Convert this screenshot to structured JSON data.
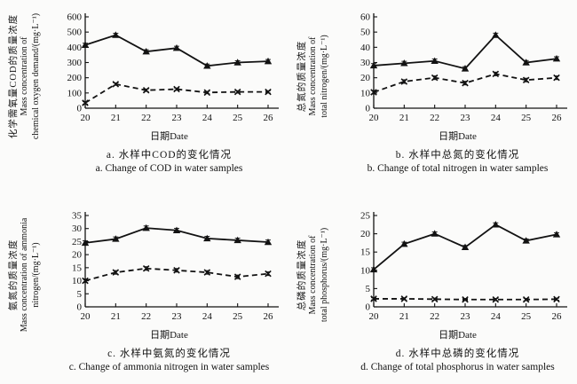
{
  "figure": {
    "background": "#fbfbfa",
    "ink": "#121212",
    "layout": "2x2-grid",
    "legend": "none",
    "grid": false
  },
  "chart_data": [
    {
      "id": "a",
      "type": "line",
      "x": [
        20,
        21,
        22,
        23,
        24,
        25,
        26
      ],
      "xlabel": "日期Date",
      "ylabel": [
        "化学需氧量COD的质量浓度",
        "Mass concentration of",
        "chemical oxygen demand/(mg·L⁻¹)"
      ],
      "ylim": [
        0,
        600
      ],
      "ytick_step": 100,
      "series": [
        {
          "line_style": "solid",
          "marker": "triangle",
          "values": [
            415,
            480,
            372,
            395,
            278,
            300,
            308
          ],
          "error": 12
        },
        {
          "line_style": "dashed",
          "marker": "x",
          "values": [
            35,
            158,
            118,
            125,
            103,
            107,
            107
          ],
          "error": 8
        }
      ],
      "caption_cn": "a. 水样中COD的变化情况",
      "caption_en": "a. Change of COD in water samples"
    },
    {
      "id": "b",
      "type": "line",
      "x": [
        20,
        21,
        22,
        23,
        24,
        25,
        26
      ],
      "xlabel": "日期Date",
      "ylabel": [
        "总氮的质量浓度",
        "Mass concentration of",
        "total nitrogen/(mg·L⁻¹)"
      ],
      "ylim": [
        0,
        60
      ],
      "ytick_step": 10,
      "series": [
        {
          "line_style": "solid",
          "marker": "triangle",
          "values": [
            28,
            29.5,
            31,
            26,
            48,
            30,
            32.5
          ],
          "error": 1.3
        },
        {
          "line_style": "dashed",
          "marker": "x",
          "values": [
            10.5,
            17.5,
            20,
            16.5,
            22.5,
            18.5,
            20
          ],
          "error": 1.2
        }
      ],
      "caption_cn": "b. 水样中总氮的变化情况",
      "caption_en": "b. Change of total nitrogen in water samples"
    },
    {
      "id": "c",
      "type": "line",
      "x": [
        20,
        21,
        22,
        23,
        24,
        25,
        26
      ],
      "xlabel": "日期Date",
      "ylabel": [
        "氨氮的质量浓度",
        "Mass concentration of ammonia",
        "nitrogen/(mg·L⁻¹)"
      ],
      "ylim": [
        0,
        35
      ],
      "ytick_step": 5,
      "series": [
        {
          "line_style": "solid",
          "marker": "triangle",
          "values": [
            24.5,
            26,
            30.2,
            29.3,
            26.2,
            25.5,
            24.8
          ],
          "error": 0.8
        },
        {
          "line_style": "dashed",
          "marker": "x",
          "values": [
            10,
            13.2,
            14.7,
            14,
            13.2,
            11.5,
            12.7
          ],
          "error": 0.7
        }
      ],
      "caption_cn": "c. 水样中氨氮的变化情况",
      "caption_en": "c. Change of ammonia nitrogen in water samples"
    },
    {
      "id": "d",
      "type": "line",
      "x": [
        20,
        21,
        22,
        23,
        24,
        25,
        26
      ],
      "xlabel": "日期Date",
      "ylabel": [
        "总磷的质量浓度",
        "Mass concentration of",
        "total phosphorus/(mg·L⁻¹)"
      ],
      "ylim": [
        0,
        25
      ],
      "ytick_step": 5,
      "series": [
        {
          "line_style": "solid",
          "marker": "triangle",
          "values": [
            10.2,
            17.2,
            20,
            16.3,
            22.5,
            18.1,
            19.8
          ],
          "error": 0.5
        },
        {
          "line_style": "dashed",
          "marker": "x",
          "values": [
            2.2,
            2.2,
            2.1,
            2,
            2,
            2,
            2.1
          ],
          "error": 0.3
        }
      ],
      "caption_cn": "d. 水样中总磷的变化情况",
      "caption_en": "d. Change of total phosphorus in water samples"
    }
  ]
}
